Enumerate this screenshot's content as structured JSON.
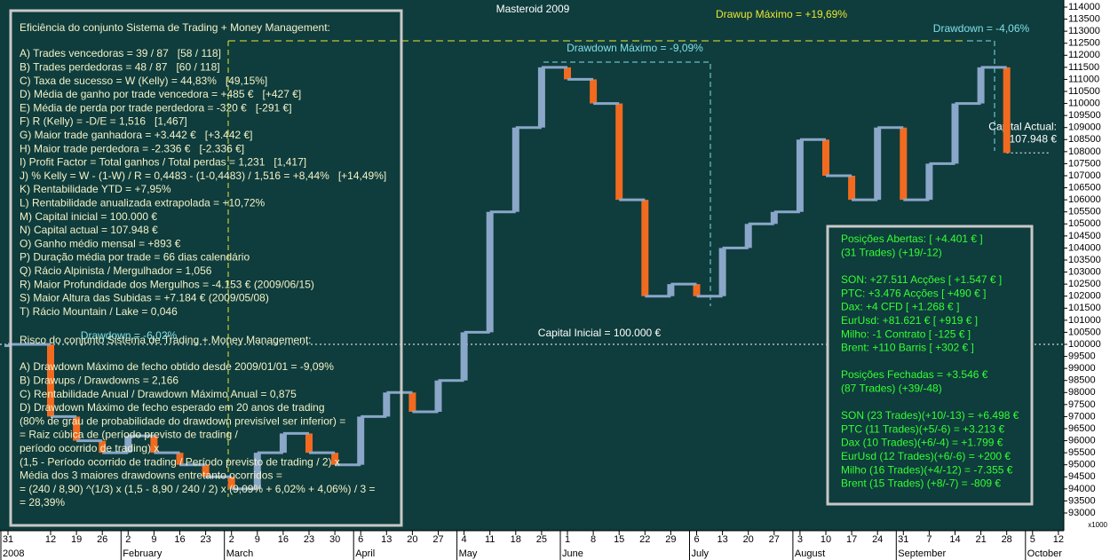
{
  "chart_data": {
    "type": "step-bar",
    "title": "Masteroid 2009",
    "background": "#0f3c3c",
    "up_color": "#8aa6c8",
    "down_color": "#f26a1f",
    "ylim": [
      93000,
      114000
    ],
    "yticks": [
      93000,
      93500,
      94000,
      94500,
      95000,
      95500,
      96000,
      96500,
      97000,
      97500,
      98000,
      98500,
      99000,
      99500,
      100000,
      100500,
      101000,
      101500,
      102000,
      102500,
      103000,
      103500,
      104000,
      104500,
      105000,
      105500,
      106000,
      106500,
      107000,
      107500,
      108000,
      108500,
      109000,
      109500,
      110000,
      110500,
      111000,
      111500,
      112000,
      112500,
      113000,
      113500,
      114000
    ],
    "y_unit_note": "x1000",
    "categories": [
      "31",
      "12",
      "19",
      "26",
      "2",
      "9",
      "16",
      "23",
      "2",
      "9",
      "16",
      "23",
      "30",
      "6",
      "13",
      "20",
      "27",
      "4",
      "11",
      "18",
      "25",
      "1",
      "8",
      "15",
      "22",
      "29",
      "6",
      "13",
      "20",
      "27",
      "3",
      "10",
      "17",
      "24",
      "31",
      "7",
      "14",
      "21",
      "28",
      "5",
      "12"
    ],
    "months": [
      "2008",
      null,
      null,
      null,
      "February",
      null,
      null,
      null,
      "March",
      null,
      null,
      null,
      null,
      "April",
      null,
      null,
      null,
      "May",
      null,
      null,
      null,
      "June",
      null,
      null,
      null,
      null,
      "July",
      null,
      null,
      null,
      "August",
      null,
      null,
      null,
      "September",
      null,
      null,
      null,
      null,
      "October",
      null
    ],
    "values": [
      100000,
      97000,
      96000,
      95500,
      96200,
      95500,
      95000,
      94500,
      94000,
      95500,
      96300,
      95500,
      95000,
      97000,
      98000,
      97200,
      98500,
      100500,
      105500,
      109000,
      111500,
      111000,
      110000,
      106000,
      102000,
      102500,
      102000,
      104000,
      105000,
      105500,
      108500,
      107000,
      106000,
      109000,
      106000,
      107500,
      110000,
      111500,
      107948,
      null,
      null
    ],
    "reference_lines": [
      {
        "value": 100000,
        "label": [
          "Capital Inicial = 100.000 €"
        ],
        "color": "#ffffff"
      },
      {
        "value": 107948,
        "label": [
          "Capital Actual:",
          "107.948 €"
        ],
        "color": "#ffffff"
      },
      {
        "value": 112600,
        "label": [
          "Drawup Máximo = +19,69%"
        ],
        "color": "#e8e830"
      }
    ],
    "drawdown_labels": [
      "Drawdown Máximo = -9,09%",
      "Drawdown = -4,06%",
      "Drawdown = -6,02%"
    ],
    "efficiency_panel": {
      "title": "Eficiência do conjunto Sistema de Trading + Money Management:",
      "lines": [
        "A) Trades vencedoras = 39 / 87   [58 / 118]",
        "B) Trades perdedoras = 48 / 87   [60 / 118]",
        "C) Taxa de sucesso = W (Kelly) = 44,83%   [49,15%]",
        "D) Média de ganho por trade vencedora = +485 €   [+427 €]",
        "E) Média de perda por trade perdedora = -320 €   [-291 €]",
        "F) R (Kelly) = -D/E = 1,516   [1,467]",
        "G) Maior trade ganhadora = +3.442 €   [+3.442 €]",
        "H) Maior trade perdedora = -2.336 €   [-2.336 €]",
        "I) Profit Factor = Total ganhos / Total perdas = 1,231   [1,417]",
        "J) % Kelly = W - (1-W) / R = 0,4483 - (1-0,4483) / 1,516 = +8,44%   [+14,49%]",
        "K) Rentabilidade YTD = +7,95%",
        "L) Rentabilidade anualizada extrapolada = +10,72%",
        "M) Capital inicial = 100.000 €",
        "N) Capital actual = 107.948 €",
        "O) Ganho médio mensal = +893 €",
        "P) Duração média por trade = 66 dias calendário",
        "Q) Rácio Alpinista / Mergulhador = 1,056",
        "R) Maior Profundidade dos Mergulhos = -4.153 € (2009/06/15)",
        "S) Maior Altura das Subidas = +7.184 € (2009/05/08)",
        "T) Rácio Mountain / Lake = 0,046"
      ]
    },
    "risk_panel": {
      "title": "Risco do conjunto Sistema de Trading + Money Management:",
      "lines": [
        "A) Drawdown Máximo de fecho obtido desde 2009/01/01 = -9,09%",
        "B) Drawups / Drawdowns = 2,166",
        "C) Rentabilidade Anual / Drawdown Máximo Anual = 0,875",
        "D) Drawdown Máximo de fecho esperado em 20 anos de trading",
        "(80% de grau de probabilidade do drawdown previsível ser inferior) =",
        "= Raiz cúbica de (período previsto de trading /",
        "período ocorrido de trading) x",
        "(1,5 - Período ocorrido de trading / Período previsto de trading / 2) x",
        "Média dos 3 maiores drawdowns entretanto ocorridos =",
        "= (240 / 8,90) ^(1/3) x (1,5 - 8,90 / 240 / 2) x (9,09% + 6,02% + 4,06%) / 3 =",
        "= 28,39%"
      ]
    },
    "positions_panel": {
      "lines": [
        "Posições Abertas: [ +4.401 € ]",
        "(31 Trades) (+19/-12)",
        null,
        "SON: +27.511 Acções [ +1.547 € ]",
        "PTC: +3.476 Acções [ +490 € ]",
        "Dax: +4 CFD [ +1.268 € ]",
        "EurUsd: +81.621 € [ +919 € ]",
        "Milho: -1 Contrato [ -125 € ]",
        "Brent: +110 Barris [ +302 € ]",
        null,
        "Posições Fechadas = +3.546 €",
        "(87 Trades) (+39/-48)",
        null,
        "SON (23 Trades)(+10/-13) = +6.498 €",
        "PTC (11 Trades)(+5/-6) = +3.213 €",
        "Dax (10 Trades)(+6/-4) = +1.799 €",
        "EurUsd (12 Trades)(+6/-6) = +200 €",
        "Milho (16 Trades)(+4/-12) = -7.355 €",
        "Brent (15 Trades) (+8/-7) = -809 €"
      ]
    }
  }
}
